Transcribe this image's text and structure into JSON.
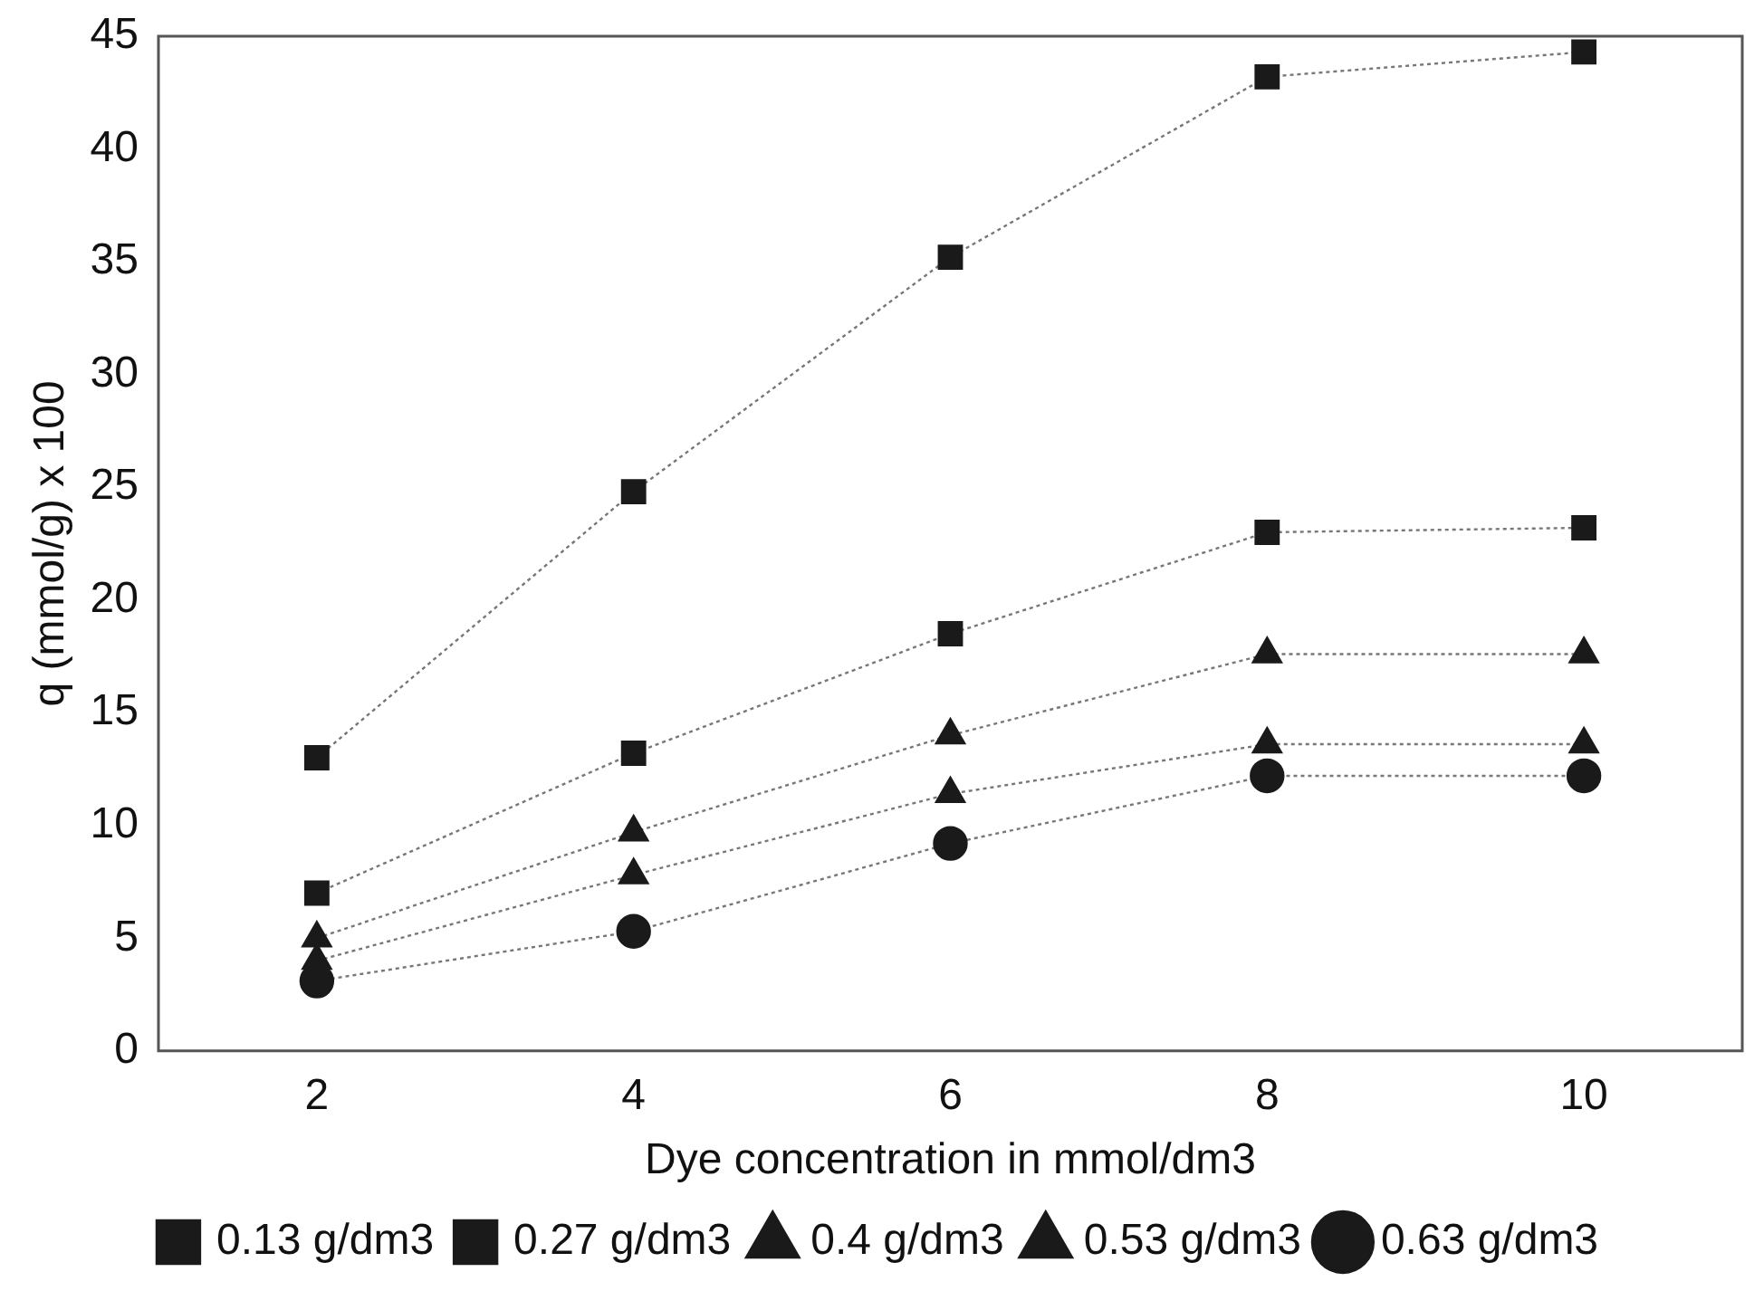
{
  "chart_data": {
    "type": "line",
    "xlabel": "Dye concentration in mmol/dm3",
    "ylabel": "q (mmol/g) x 100",
    "categories": [
      "2",
      "4",
      "6",
      "8",
      "10"
    ],
    "ylim": [
      0,
      45
    ],
    "yticks": [
      0,
      5,
      10,
      15,
      20,
      25,
      30,
      35,
      40,
      45
    ],
    "grid": false,
    "legend": "bottom",
    "line_style": "dotted",
    "series": [
      {
        "name": "0.13 g/dm3",
        "color": "#1a1a1a",
        "marker": "square",
        "values": [
          13,
          24.8,
          35.2,
          43.2,
          44.3
        ]
      },
      {
        "name": "0.27 g/dm3",
        "color": "#1a1a1a",
        "marker": "square",
        "values": [
          7,
          13.2,
          18.5,
          23,
          23.2
        ]
      },
      {
        "name": "0.4 g/dm3",
        "color": "#1a1a1a",
        "marker": "triangle",
        "values": [
          5,
          9.7,
          14,
          17.6,
          17.6
        ]
      },
      {
        "name": "0.53 g/dm3",
        "color": "#1a1a1a",
        "marker": "triangle",
        "values": [
          4,
          7.8,
          11.4,
          13.6,
          13.6
        ]
      },
      {
        "name": "0.63 g/dm3",
        "color": "#1a1a1a",
        "marker": "circle",
        "values": [
          3.1,
          5.3,
          9.2,
          12.2,
          12.2
        ]
      }
    ]
  }
}
